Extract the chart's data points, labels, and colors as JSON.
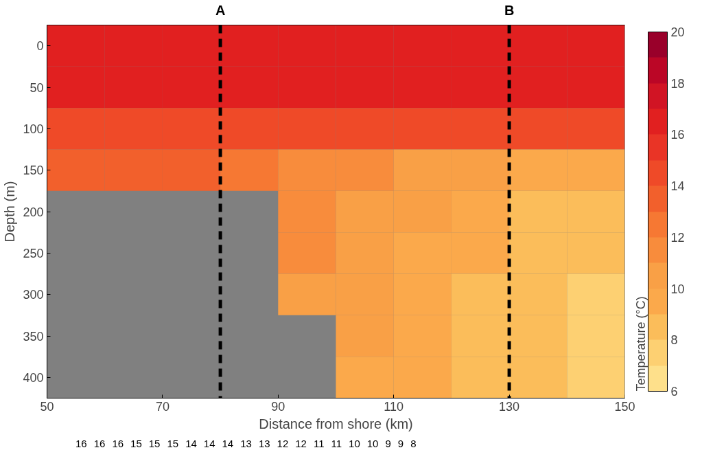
{
  "chart_data": {
    "type": "heatmap",
    "xlabel": "Distance from shore (km)",
    "ylabel": "Depth (m)",
    "clabel": "Temperature (°C)",
    "x": [
      55,
      65,
      75,
      85,
      95,
      105,
      115,
      125,
      135,
      145
    ],
    "xlim": [
      50,
      150
    ],
    "xticks": [
      50,
      70,
      90,
      110,
      130,
      150
    ],
    "y_categories": [
      "0",
      "50",
      "100",
      "150",
      "200",
      "250",
      "300",
      "350",
      "400"
    ],
    "cells": [
      [
        16.5,
        16.5,
        16.5,
        16.5,
        16.5,
        16.5,
        16.5,
        16.5,
        16.5,
        16.5
      ],
      [
        16.2,
        16.2,
        16.2,
        16.2,
        16.2,
        16.2,
        16.2,
        16.2,
        16.2,
        16.2
      ],
      [
        14.6,
        14.5,
        14.4,
        14.4,
        14.4,
        14.4,
        14.5,
        14.5,
        14.6,
        14.7
      ],
      [
        13.6,
        13.3,
        13.0,
        12.5,
        11.9,
        11.3,
        10.7,
        10.2,
        9.7,
        9.3
      ],
      [
        null,
        null,
        null,
        null,
        11.4,
        10.8,
        10.0,
        9.3,
        8.7,
        8.3
      ],
      [
        null,
        null,
        null,
        null,
        11.2,
        10.6,
        9.8,
        9.1,
        8.5,
        8.0
      ],
      [
        null,
        null,
        null,
        null,
        10.9,
        10.4,
        9.7,
        8.9,
        8.3,
        7.8
      ],
      [
        null,
        null,
        null,
        null,
        null,
        10.1,
        9.5,
        8.8,
        8.2,
        7.6
      ],
      [
        null,
        null,
        null,
        null,
        null,
        9.8,
        9.4,
        8.7,
        8.1,
        7.5
      ]
    ],
    "clim": [
      6,
      20
    ],
    "cticks": [
      6,
      8,
      10,
      12,
      14,
      16,
      18,
      20
    ],
    "ref_lines": [
      {
        "axis": "x",
        "value": 80,
        "label": "A",
        "color": "#000000",
        "line_style": "dashed"
      },
      {
        "axis": "x",
        "value": 130,
        "label": "B",
        "color": "#000000",
        "line_style": "dashed"
      }
    ],
    "annotations": [
      "16",
      "16",
      "16",
      "15",
      "15",
      "15",
      "14",
      "14",
      "14",
      "13",
      "13",
      "12",
      "12",
      "11",
      "11",
      "10",
      "10",
      "9",
      "9",
      "8"
    ]
  }
}
